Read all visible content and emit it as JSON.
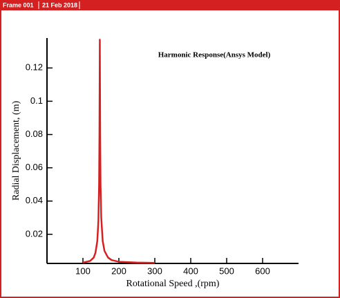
{
  "header": {
    "frame": "Frame 001",
    "date": "21 Feb 2018"
  },
  "chart_data": {
    "type": "line",
    "annotation": "Harmonic Response(Ansys Model)",
    "x_label": "Rotational Speed ,(rpm)",
    "y_label": "Radial Displacement, (m)",
    "x": [
      100,
      120,
      130,
      135,
      140,
      143,
      145,
      146,
      147,
      148,
      149,
      151,
      155,
      160,
      170,
      180,
      200,
      250,
      300
    ],
    "series": [
      {
        "color": "#d42020",
        "values": [
          0.003,
          0.004,
          0.006,
          0.009,
          0.016,
          0.028,
          0.05,
          0.08,
          0.137,
          0.08,
          0.05,
          0.03,
          0.016,
          0.01,
          0.006,
          0.0045,
          0.0035,
          0.003,
          0.0028
        ]
      }
    ],
    "xlim": [
      0,
      700
    ],
    "xticks": [
      100,
      200,
      300,
      400,
      500,
      600
    ],
    "ylim": [
      0.0025,
      0.138
    ],
    "yticks": [
      0.02,
      0.04,
      0.06,
      0.08,
      0.1,
      0.12
    ]
  }
}
